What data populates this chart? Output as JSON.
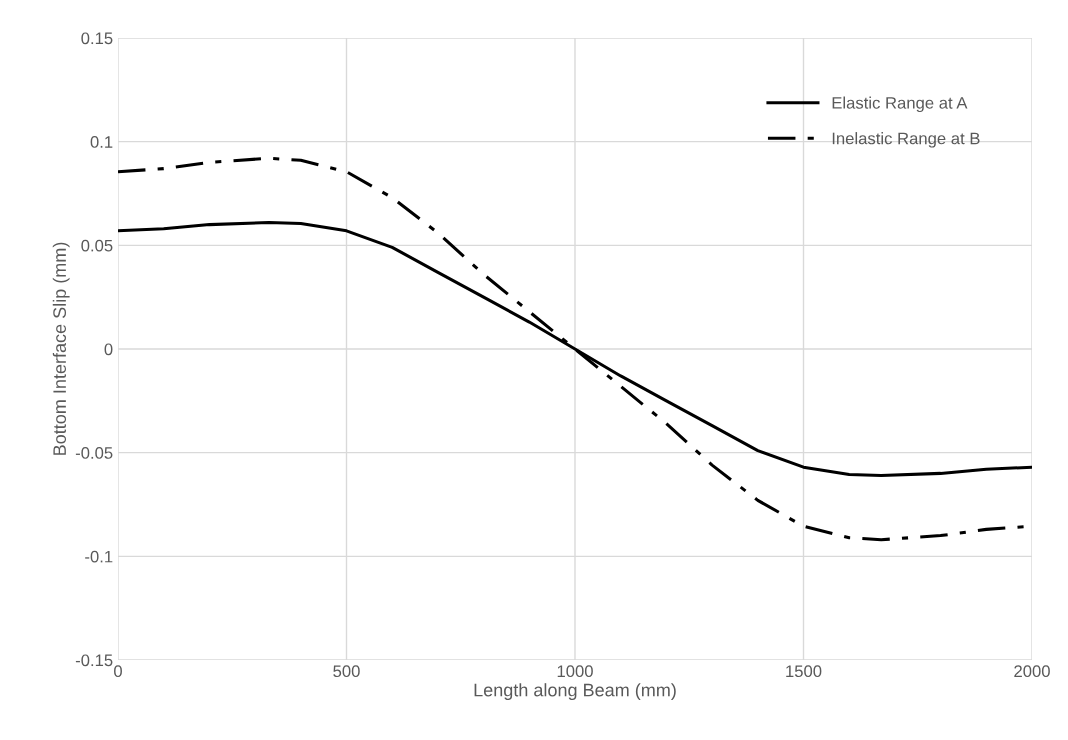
{
  "chart_data": {
    "type": "line",
    "xlabel": "Length along Beam (mm)",
    "ylabel": "Bottom Interface Slip (mm)",
    "x": [
      0,
      100,
      200,
      330,
      400,
      500,
      600,
      700,
      800,
      900,
      1000,
      1100,
      1200,
      1300,
      1400,
      1500,
      1600,
      1670,
      1800,
      1900,
      2000
    ],
    "series": [
      {
        "name": "Elastic Range at A",
        "color": "#000000",
        "line_style": "solid",
        "values": [
          0.057,
          0.058,
          0.06,
          0.061,
          0.0605,
          0.057,
          0.049,
          0.037,
          0.025,
          0.013,
          0,
          -0.013,
          -0.025,
          -0.037,
          -0.049,
          -0.057,
          -0.0605,
          -0.061,
          -0.06,
          -0.058,
          -0.057
        ]
      },
      {
        "name": "Inelastic Range at B",
        "color": "#000000",
        "line_style": "dashdot",
        "values": [
          0.0855,
          0.087,
          0.09,
          0.092,
          0.091,
          0.0855,
          0.073,
          0.056,
          0.036,
          0.018,
          0,
          -0.018,
          -0.036,
          -0.056,
          -0.073,
          -0.0855,
          -0.091,
          -0.092,
          -0.09,
          -0.087,
          -0.0855
        ]
      }
    ],
    "xlim": [
      0,
      2000
    ],
    "xticks": [
      0,
      500,
      1000,
      1500,
      2000
    ],
    "ylim": [
      -0.15,
      0.15
    ],
    "yticks": [
      -0.15,
      -0.1,
      -0.05,
      0,
      0.05,
      0.1,
      0.15
    ],
    "grid": true,
    "legend": "top right",
    "marker": "none"
  }
}
